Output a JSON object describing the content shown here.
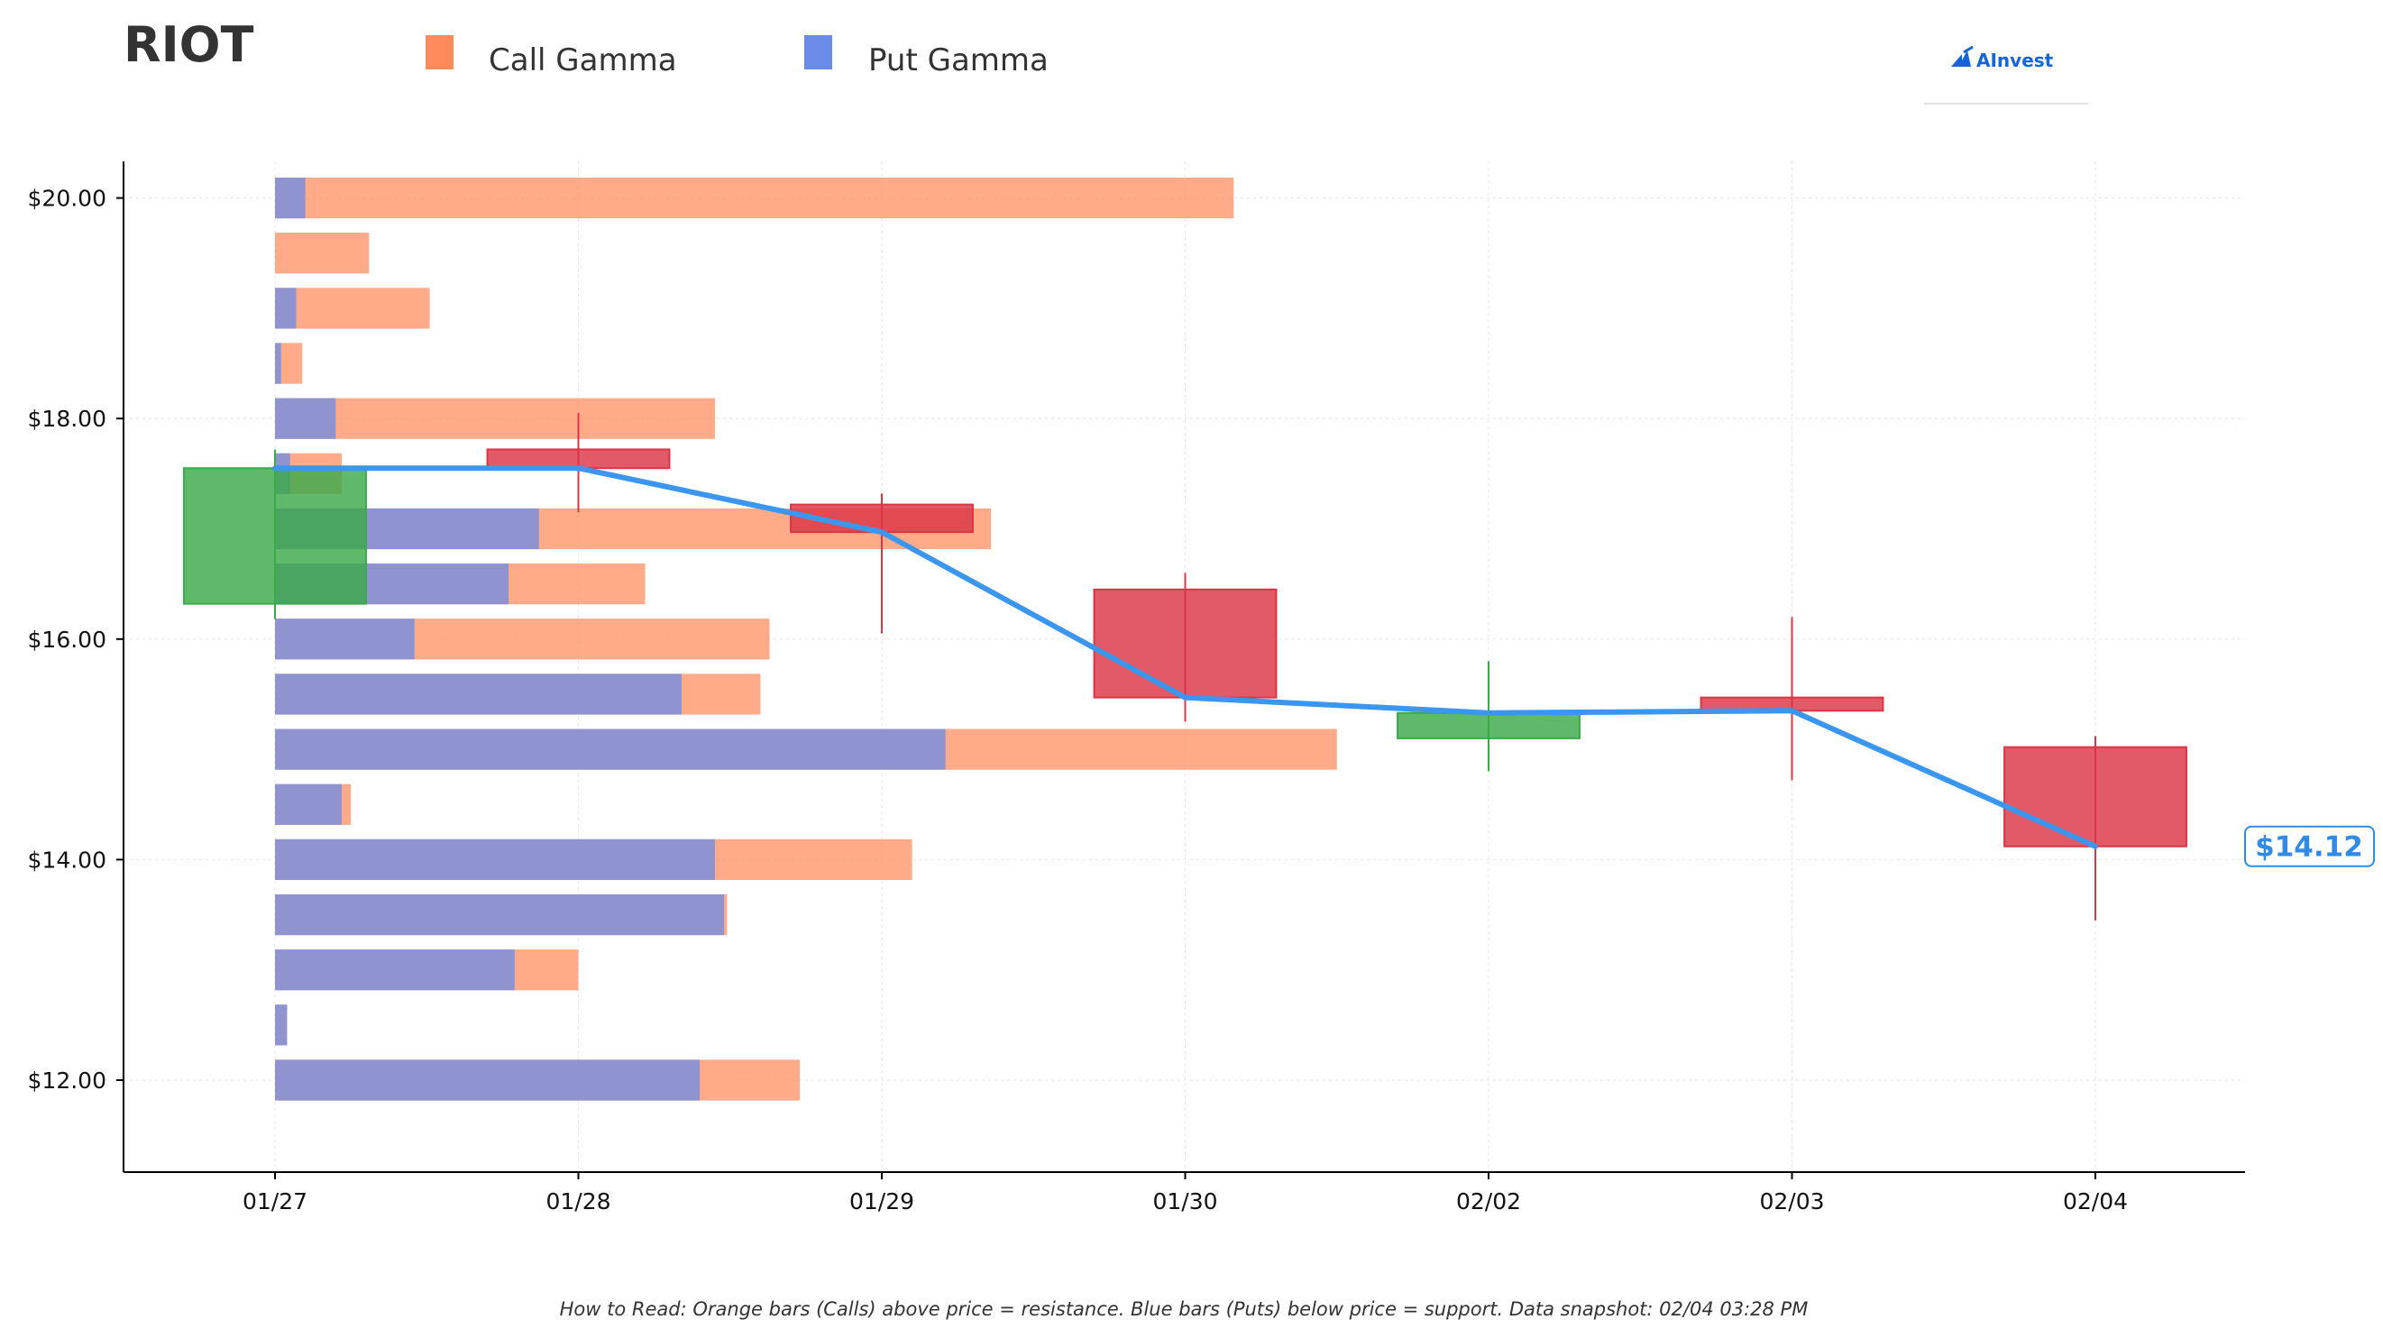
{
  "header": {
    "ticker": "RIOT",
    "logo_text": "AInvest"
  },
  "legend": [
    {
      "label": "Call Gamma",
      "color": "#ff8a5c"
    },
    {
      "label": "Put Gamma",
      "color": "#6a8be8"
    }
  ],
  "footnote": "How to Read: Orange bars (Calls) above price = resistance. Blue bars (Puts) below price = support. Data snapshot: 02/04 03:28 PM",
  "chart_data": {
    "type": "candlestick",
    "title": "",
    "xlabel": "",
    "ylabel": "",
    "x": [
      "01/27",
      "01/28",
      "01/29",
      "01/30",
      "02/02",
      "02/03",
      "02/04"
    ],
    "ylim": [
      11.2,
      20.35
    ],
    "yticks": [
      12,
      14,
      16,
      18,
      20
    ],
    "ytick_labels": [
      "$12.00",
      "$14.00",
      "$16.00",
      "$18.00",
      "$20.00"
    ],
    "grid": true,
    "legend_position": "top-left",
    "colors": {
      "up": "#3aaa4a",
      "down": "#dc3545",
      "call": "#ff8a5c",
      "put": "#6a8be8",
      "price_line": "#3a96ee"
    },
    "candles": [
      {
        "date": "01/27",
        "open": 16.32,
        "high": 17.72,
        "low": 16.18,
        "close": 17.55
      },
      {
        "date": "01/28",
        "open": 17.72,
        "high": 18.05,
        "low": 17.15,
        "close": 17.55
      },
      {
        "date": "01/29",
        "open": 17.22,
        "high": 17.32,
        "low": 16.05,
        "close": 16.97
      },
      {
        "date": "01/30",
        "open": 16.45,
        "high": 16.6,
        "low": 15.25,
        "close": 15.47
      },
      {
        "date": "02/02",
        "open": 15.1,
        "high": 15.8,
        "low": 14.8,
        "close": 15.33
      },
      {
        "date": "02/03",
        "open": 15.47,
        "high": 16.2,
        "low": 14.72,
        "close": 15.35
      },
      {
        "date": "02/04",
        "open": 15.02,
        "high": 15.12,
        "low": 13.45,
        "close": 14.12
      }
    ],
    "price_line": {
      "values": [
        17.55,
        17.55,
        16.97,
        15.47,
        15.33,
        15.35,
        14.12
      ]
    },
    "last_price_label": "$14.12",
    "gamma_strike_step": 0.5,
    "gamma_bars": [
      {
        "strike": 20.0,
        "put": 0.1,
        "call": 3.16
      },
      {
        "strike": 19.5,
        "put": 0.0,
        "call": 0.31
      },
      {
        "strike": 19.0,
        "put": 0.07,
        "call": 0.51
      },
      {
        "strike": 18.5,
        "put": 0.02,
        "call": 0.09
      },
      {
        "strike": 18.0,
        "put": 0.2,
        "call": 1.45
      },
      {
        "strike": 17.5,
        "put": 0.05,
        "call": 0.22
      },
      {
        "strike": 17.0,
        "put": 0.87,
        "call": 2.36
      },
      {
        "strike": 16.5,
        "put": 0.77,
        "call": 1.22
      },
      {
        "strike": 16.0,
        "put": 0.46,
        "call": 1.63
      },
      {
        "strike": 15.5,
        "put": 1.34,
        "call": 1.6
      },
      {
        "strike": 15.0,
        "put": 2.21,
        "call": 3.5
      },
      {
        "strike": 14.5,
        "put": 0.22,
        "call": 0.25
      },
      {
        "strike": 14.0,
        "put": 1.45,
        "call": 2.1
      },
      {
        "strike": 13.5,
        "put": 1.48,
        "call": 1.49
      },
      {
        "strike": 13.0,
        "put": 0.79,
        "call": 1.0
      },
      {
        "strike": 12.5,
        "put": 0.04,
        "call": 0.04
      },
      {
        "strike": 12.0,
        "put": 1.4,
        "call": 1.73
      }
    ]
  }
}
